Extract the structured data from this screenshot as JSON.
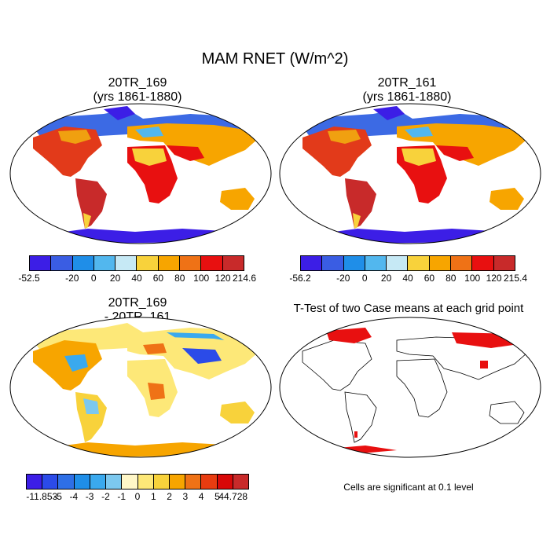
{
  "title": "MAM RNET (W/m^2)",
  "panels": {
    "tl": {
      "title1": "20TR_169",
      "title2": "(yrs 1861-1880)"
    },
    "tr": {
      "title1": "20TR_161",
      "title2": "(yrs 1861-1880)"
    },
    "bl": {
      "title1": "20TR_169",
      "title2": "- 20TR_161"
    },
    "br": {
      "title1": "T-Test of two Case means at each grid point"
    }
  },
  "colorbar_1": {
    "labels": [
      "-52.5",
      "-20",
      "0",
      "20",
      "40",
      "60",
      "80",
      "100",
      "120",
      "214.6"
    ],
    "colors": [
      "#3c1ee6",
      "#3a5de3",
      "#1f8ee8",
      "#52b7ee",
      "#c6e9f5",
      "#f8d23b",
      "#f7a500",
      "#ef7216",
      "#e81010",
      "#c82a2a"
    ]
  },
  "colorbar_2": {
    "labels": [
      "-56.2",
      "-20",
      "0",
      "20",
      "40",
      "60",
      "80",
      "100",
      "120",
      "215.4"
    ],
    "colors": [
      "#3c1ee6",
      "#3a5de3",
      "#1f8ee8",
      "#52b7ee",
      "#c6e9f5",
      "#f8d23b",
      "#f7a500",
      "#ef7216",
      "#e81010",
      "#c82a2a"
    ]
  },
  "colorbar_3": {
    "labels": [
      "-11.853",
      "-5",
      "-4",
      "-3",
      "-2",
      "-1",
      "0",
      "1",
      "2",
      "3",
      "4",
      "5",
      "44.728"
    ],
    "colors": [
      "#3c1ee6",
      "#2b4be8",
      "#2e6fe6",
      "#1f8ee8",
      "#3aa9ee",
      "#7cc8ef",
      "#fff7c8",
      "#fde878",
      "#f8d23b",
      "#f7a500",
      "#ef7216",
      "#e83c10",
      "#d80808",
      "#c82a2a"
    ]
  },
  "significance_note": "Cells are significant at 0.1 level"
}
